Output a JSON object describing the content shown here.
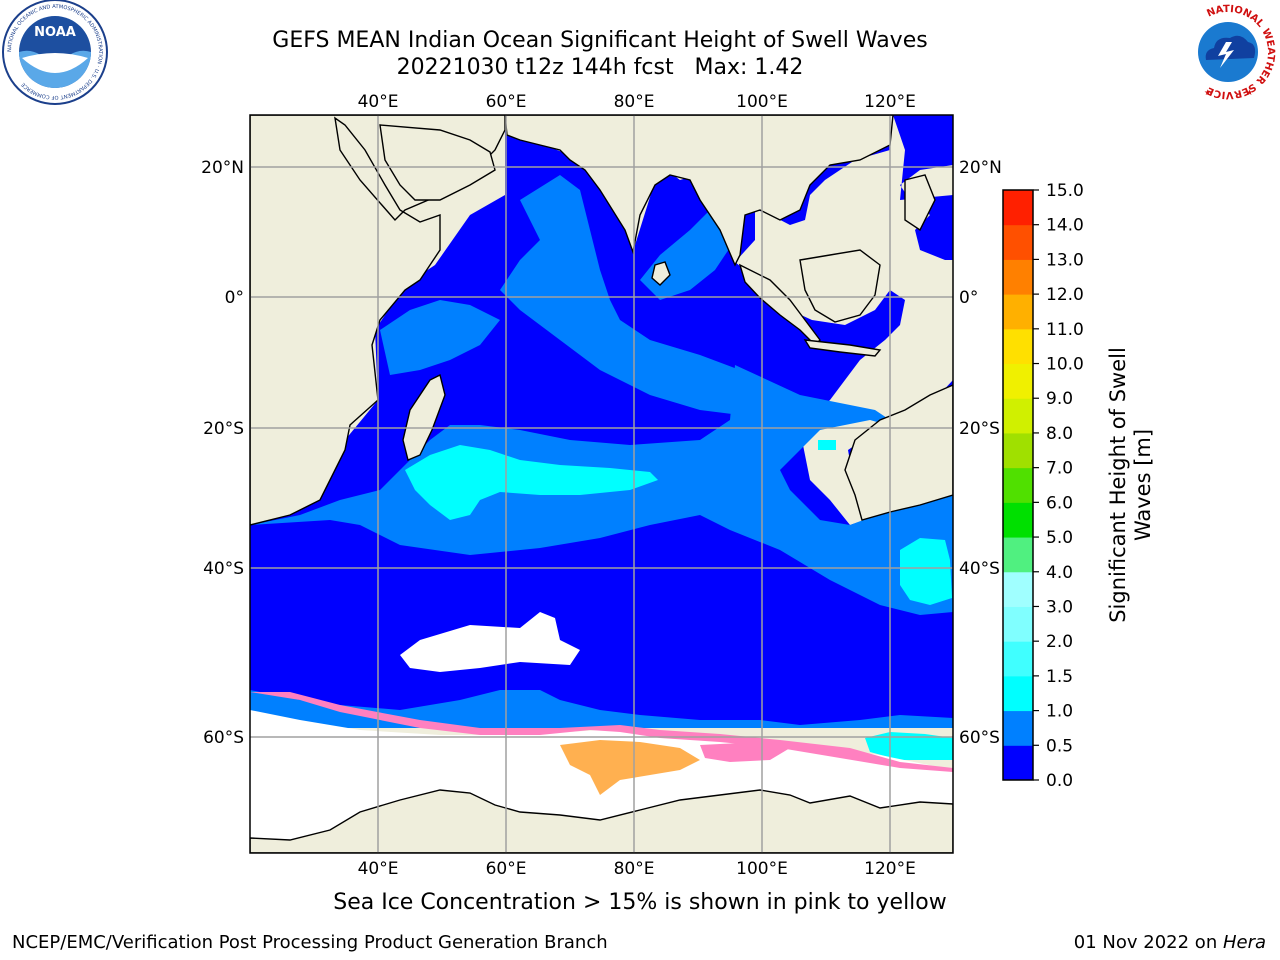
{
  "title": {
    "line1": "GEFS MEAN Indian Ocean Significant Height of Swell Waves",
    "line2": "20221030 t12z 144h fcst   Max: 1.42"
  },
  "map": {
    "lon_ticks": [
      "40°E",
      "60°E",
      "80°E",
      "100°E",
      "120°E"
    ],
    "lat_ticks": [
      "20°N",
      "0°",
      "20°S",
      "40°S",
      "60°S"
    ],
    "colors": {
      "land": "#efeedc",
      "deep_blue": "#0000ff",
      "mid_blue": "#0080ff",
      "cyan": "#00ffff",
      "ice_pink": "#ff80c0",
      "ice_orange": "#ffb050",
      "grid": "#a0a0a0"
    }
  },
  "colorbar": {
    "label_line1": "Significant Height of Swell",
    "label_line2": "Waves [m]",
    "ticks": [
      "0.0",
      "0.5",
      "1.0",
      "1.5",
      "2.0",
      "3.0",
      "4.0",
      "5.0",
      "6.0",
      "7.0",
      "8.0",
      "9.0",
      "10.0",
      "11.0",
      "12.0",
      "13.0",
      "14.0",
      "15.0"
    ],
    "colors": [
      "#0000ff",
      "#0080ff",
      "#00ffff",
      "#40ffff",
      "#80ffff",
      "#a0ffff",
      "#50f080",
      "#00e000",
      "#50e000",
      "#a0e000",
      "#d0f000",
      "#f0f000",
      "#ffe000",
      "#ffb000",
      "#ff8000",
      "#ff5000",
      "#ff2000",
      "#ff0000"
    ]
  },
  "logos": {
    "noaa_text": "NOAA",
    "noaa_ring": "NATIONAL OCEANIC AND ATMOSPHERIC ADMINISTRATION · U.S. DEPARTMENT OF COMMERCE",
    "nws_ring": "NATIONAL WEATHER SERVICE"
  },
  "caption": "Sea Ice Concentration > 15% is shown in pink to yellow",
  "footer": {
    "left": "NCEP/EMC/Verification Post Processing Product Generation Branch",
    "right_date": "01 Nov 2022 on ",
    "right_host": "Hera"
  }
}
